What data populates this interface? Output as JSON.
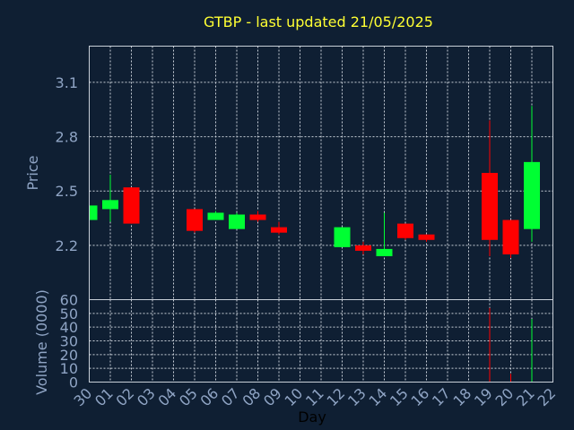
{
  "chart_data": {
    "type": "candlestick",
    "title": "GTBP - last updated 21/05/2025",
    "xlabel": "Day",
    "price_panel": {
      "ylabel": "Price",
      "ylim": [
        1.9,
        3.3
      ],
      "yticks": [
        2.2,
        2.5,
        2.8,
        3.1
      ],
      "ytick_labels": [
        "2.2",
        "2.5",
        "2.8",
        "3.1"
      ]
    },
    "volume_panel": {
      "ylabel": "Volume (0000)",
      "ylim": [
        0,
        60
      ],
      "yticks": [
        0,
        10,
        20,
        30,
        40,
        50,
        60
      ],
      "ytick_labels": [
        "0",
        "10",
        "20",
        "30",
        "40",
        "50",
        "60"
      ]
    },
    "x_tick_labels": [
      "30",
      "01",
      "02",
      "03",
      "04",
      "05",
      "06",
      "07",
      "08",
      "09",
      "10",
      "11",
      "12",
      "13",
      "14",
      "15",
      "16",
      "17",
      "18",
      "19",
      "20",
      "21",
      "22"
    ],
    "up_color": "#00ff33",
    "down_color": "#ff0000",
    "candles": [
      {
        "day": "30",
        "open": 2.34,
        "high": 2.42,
        "low": 2.34,
        "close": 2.42
      },
      {
        "day": "01",
        "open": 2.4,
        "high": 2.59,
        "low": 2.33,
        "close": 2.45
      },
      {
        "day": "02",
        "open": 2.52,
        "high": 2.52,
        "low": 2.32,
        "close": 2.32
      },
      {
        "day": "05",
        "open": 2.4,
        "high": 2.4,
        "low": 2.27,
        "close": 2.28
      },
      {
        "day": "06",
        "open": 2.34,
        "high": 2.39,
        "low": 2.34,
        "close": 2.38
      },
      {
        "day": "07",
        "open": 2.29,
        "high": 2.38,
        "low": 2.29,
        "close": 2.37
      },
      {
        "day": "08",
        "open": 2.37,
        "high": 2.39,
        "low": 2.33,
        "close": 2.34
      },
      {
        "day": "09",
        "open": 2.3,
        "high": 2.33,
        "low": 2.26,
        "close": 2.27
      },
      {
        "day": "12",
        "open": 2.19,
        "high": 2.3,
        "low": 2.19,
        "close": 2.3
      },
      {
        "day": "13",
        "open": 2.2,
        "high": 2.22,
        "low": 2.15,
        "close": 2.17
      },
      {
        "day": "14",
        "open": 2.14,
        "high": 2.38,
        "low": 2.14,
        "close": 2.18
      },
      {
        "day": "15",
        "open": 2.32,
        "high": 2.32,
        "low": 2.23,
        "close": 2.24
      },
      {
        "day": "16",
        "open": 2.26,
        "high": 2.26,
        "low": 2.22,
        "close": 2.23
      },
      {
        "day": "19",
        "open": 2.6,
        "high": 2.89,
        "low": 2.14,
        "close": 2.23
      },
      {
        "day": "20",
        "open": 2.34,
        "high": 2.34,
        "low": 2.13,
        "close": 2.15
      },
      {
        "day": "21",
        "open": 2.29,
        "high": 2.97,
        "low": 2.22,
        "close": 2.66
      }
    ],
    "volume": [
      {
        "day": "19",
        "value": 54,
        "direction": "down"
      },
      {
        "day": "20",
        "value": 6,
        "direction": "down"
      },
      {
        "day": "21",
        "value": 46,
        "direction": "up"
      }
    ]
  }
}
